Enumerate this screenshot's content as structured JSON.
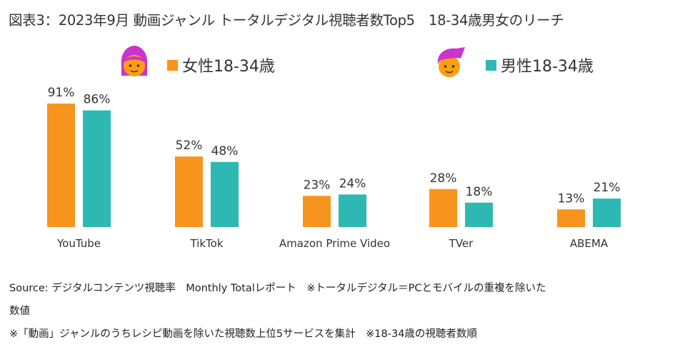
{
  "title": "図表3：2023年9月 動画ジャンル トータルデジタル視聴者数Top5　18-34歳男女のリーチ",
  "legend": {
    "female": {
      "label": "女性18-34歳",
      "icon": "female-face-icon"
    },
    "male": {
      "label": "男性18-34歳",
      "icon": "male-face-icon"
    }
  },
  "colors": {
    "female": "#F7941D",
    "male": "#2EB8B4",
    "female_hair": "#CC33CC",
    "male_hair": "#CC33CC",
    "skin": "#FF9E0F",
    "text": "#333333"
  },
  "chart_data": {
    "type": "bar",
    "categories": [
      "YouTube",
      "TikTok",
      "Amazon Prime Video",
      "TVer",
      "ABEMA"
    ],
    "series": [
      {
        "name": "女性18-34歳",
        "values": [
          91,
          52,
          23,
          28,
          13
        ]
      },
      {
        "name": "男性18-34歳",
        "values": [
          86,
          48,
          24,
          18,
          21
        ]
      }
    ],
    "value_suffix": "%",
    "ylim": [
      0,
      100
    ],
    "grid": false,
    "legend_position": "top"
  },
  "footer": {
    "line1": "Source:  デジタルコンテンツ視聴率　Monthly  Totalレポート　※トータルデジタル＝PCとモバイルの重複を除いた",
    "line2": "数値",
    "line3": "※「動画」ジャンルのうちレシピ動画を除いた視聴数上位5サービスを集計　※18-34歳の視聴者数順"
  }
}
